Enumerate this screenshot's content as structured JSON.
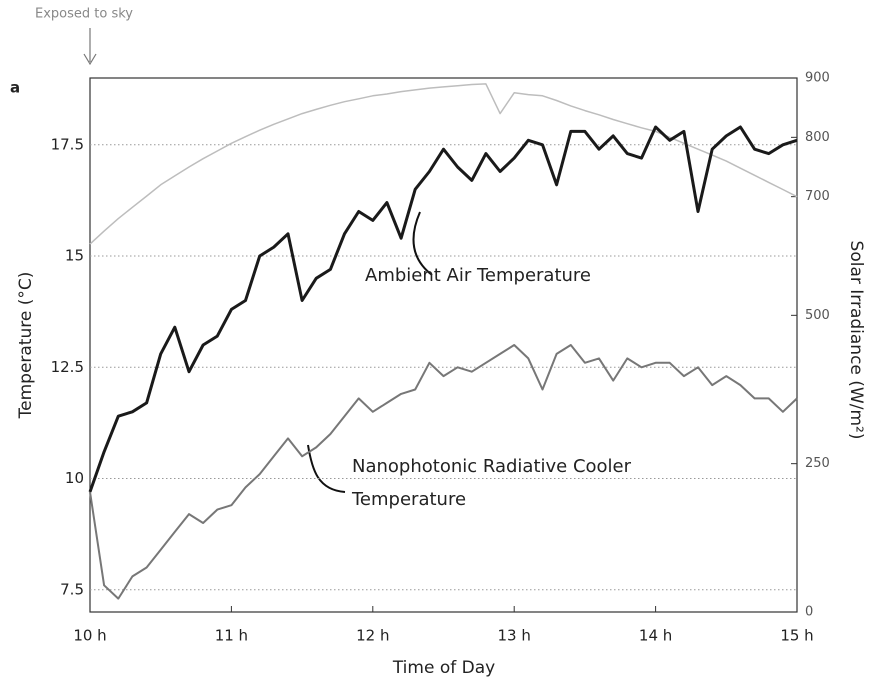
{
  "chart_data": {
    "type": "line",
    "xlabel": "Time of Day",
    "ylabel": "Temperature (°C)",
    "y2label": "Solar Irradiance (W/m²)",
    "annotations": [
      "Exposed to sky",
      "a",
      "Ambient Air Temperature",
      "Nanophotonic Radiative Cooler",
      "Temperature"
    ],
    "x": [
      10,
      10.1,
      10.2,
      10.3,
      10.4,
      10.5,
      10.6,
      10.7,
      10.8,
      10.9,
      11,
      11.1,
      11.2,
      11.3,
      11.4,
      11.5,
      11.6,
      11.7,
      11.8,
      11.9,
      12,
      12.1,
      12.2,
      12.3,
      12.4,
      12.5,
      12.6,
      12.7,
      12.8,
      12.9,
      13,
      13.1,
      13.2,
      13.3,
      13.4,
      13.5,
      13.6,
      13.7,
      13.8,
      13.9,
      14,
      14.1,
      14.2,
      14.3,
      14.4,
      14.5,
      14.6,
      14.7,
      14.8,
      14.9,
      15
    ],
    "series": [
      {
        "color": "#1a1a1a",
        "values": [
          9.7,
          10.6,
          11.4,
          11.5,
          11.7,
          12.8,
          13.4,
          12.4,
          13.0,
          13.2,
          13.8,
          14.0,
          15.0,
          15.2,
          15.5,
          14.0,
          14.5,
          14.7,
          15.5,
          16.0,
          15.8,
          16.2,
          15.4,
          16.5,
          16.9,
          17.4,
          17.0,
          16.7,
          17.3,
          16.9,
          17.2,
          17.6,
          17.5,
          16.6,
          17.8,
          17.8,
          17.4,
          17.7,
          17.3,
          17.2,
          17.9,
          17.6,
          17.8,
          16.0,
          17.4,
          17.7,
          17.9,
          17.4,
          17.3,
          17.5,
          17.6
        ]
      },
      {
        "color": "#777777",
        "values": [
          9.7,
          7.6,
          7.3,
          7.8,
          8.0,
          8.4,
          8.8,
          9.2,
          9.0,
          9.3,
          9.4,
          9.8,
          10.1,
          10.5,
          10.9,
          10.5,
          10.7,
          11.0,
          11.4,
          11.8,
          11.5,
          11.7,
          11.9,
          12.0,
          12.6,
          12.3,
          12.5,
          12.4,
          12.6,
          12.8,
          13.0,
          12.7,
          12.0,
          12.8,
          13.0,
          12.6,
          12.7,
          12.2,
          12.7,
          12.5,
          12.6,
          12.6,
          12.3,
          12.5,
          12.1,
          12.3,
          12.1,
          11.8,
          11.8,
          11.5,
          11.8
        ]
      },
      {
        "color": "#bdbdbd",
        "axis": "y2",
        "values": [
          620,
          642,
          663,
          682,
          701,
          720,
          735,
          750,
          764,
          777,
          790,
          801,
          812,
          822,
          831,
          840,
          847,
          854,
          860,
          865,
          870,
          873,
          877,
          880,
          883,
          885,
          887,
          889,
          890,
          840,
          875,
          872,
          870,
          862,
          853,
          845,
          838,
          830,
          823,
          816,
          810,
          800,
          790,
          780,
          770,
          760,
          748,
          736,
          724,
          712,
          700
        ]
      }
    ],
    "xlim": [
      10,
      15
    ],
    "xticks": [
      {
        "value": 10,
        "label": "10 h"
      },
      {
        "value": 11,
        "label": "11 h"
      },
      {
        "value": 12,
        "label": "12 h"
      },
      {
        "value": 13,
        "label": "13 h"
      },
      {
        "value": 14,
        "label": "14 h"
      },
      {
        "value": 15,
        "label": "15 h"
      }
    ],
    "ylim": [
      7,
      19
    ],
    "yticks": [
      7.5,
      10,
      12.5,
      15,
      17.5
    ],
    "y2lim": [
      0,
      900
    ],
    "y2ticks": [
      0,
      250,
      500,
      700,
      800,
      900
    ],
    "grid": true
  }
}
